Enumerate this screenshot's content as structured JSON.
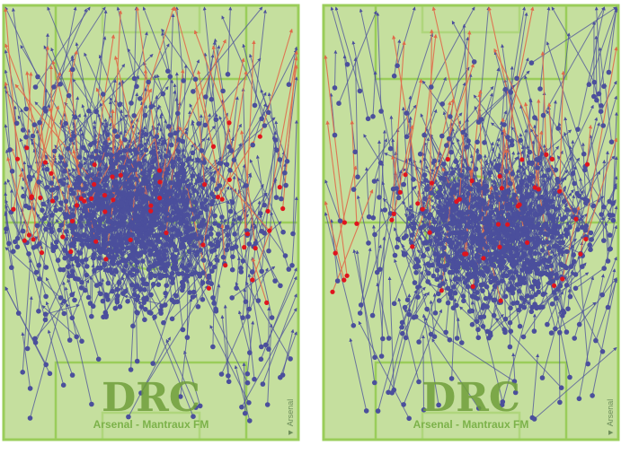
{
  "chart_data": [
    {
      "type": "scatter",
      "subtype": "pass-map",
      "title": "",
      "watermark": "DRC",
      "caption": "Arsenal - Mantraux FM",
      "team_label": "Arsenal",
      "direction_marker": "▶",
      "attack_direction": "up",
      "pitch_color": "#c5df9e",
      "line_color": "#9acd5a",
      "colors": {
        "completed": "#4b4f9c",
        "incomplete": "#e06a4a",
        "endpoint_fail": "#e0141e"
      },
      "density": {
        "completed_core": 900,
        "completed_spread": 200,
        "incomplete": 55
      },
      "focus": {
        "x": 0.45,
        "y": 0.38
      },
      "generated": false
    },
    {
      "type": "scatter",
      "subtype": "pass-map",
      "title": "",
      "watermark": "DRC",
      "caption": "Arsenal - Mantraux FM",
      "team_label": "Arsenal",
      "direction_marker": "▶",
      "attack_direction": "up",
      "pitch_color": "#c5df9e",
      "line_color": "#9acd5a",
      "colors": {
        "completed": "#4b4f9c",
        "incomplete": "#e06a4a",
        "endpoint_fail": "#e0141e"
      },
      "density": {
        "completed_core": 780,
        "completed_spread": 160,
        "incomplete": 45
      },
      "focus": {
        "x": 0.58,
        "y": 0.42
      },
      "generated": false
    }
  ]
}
